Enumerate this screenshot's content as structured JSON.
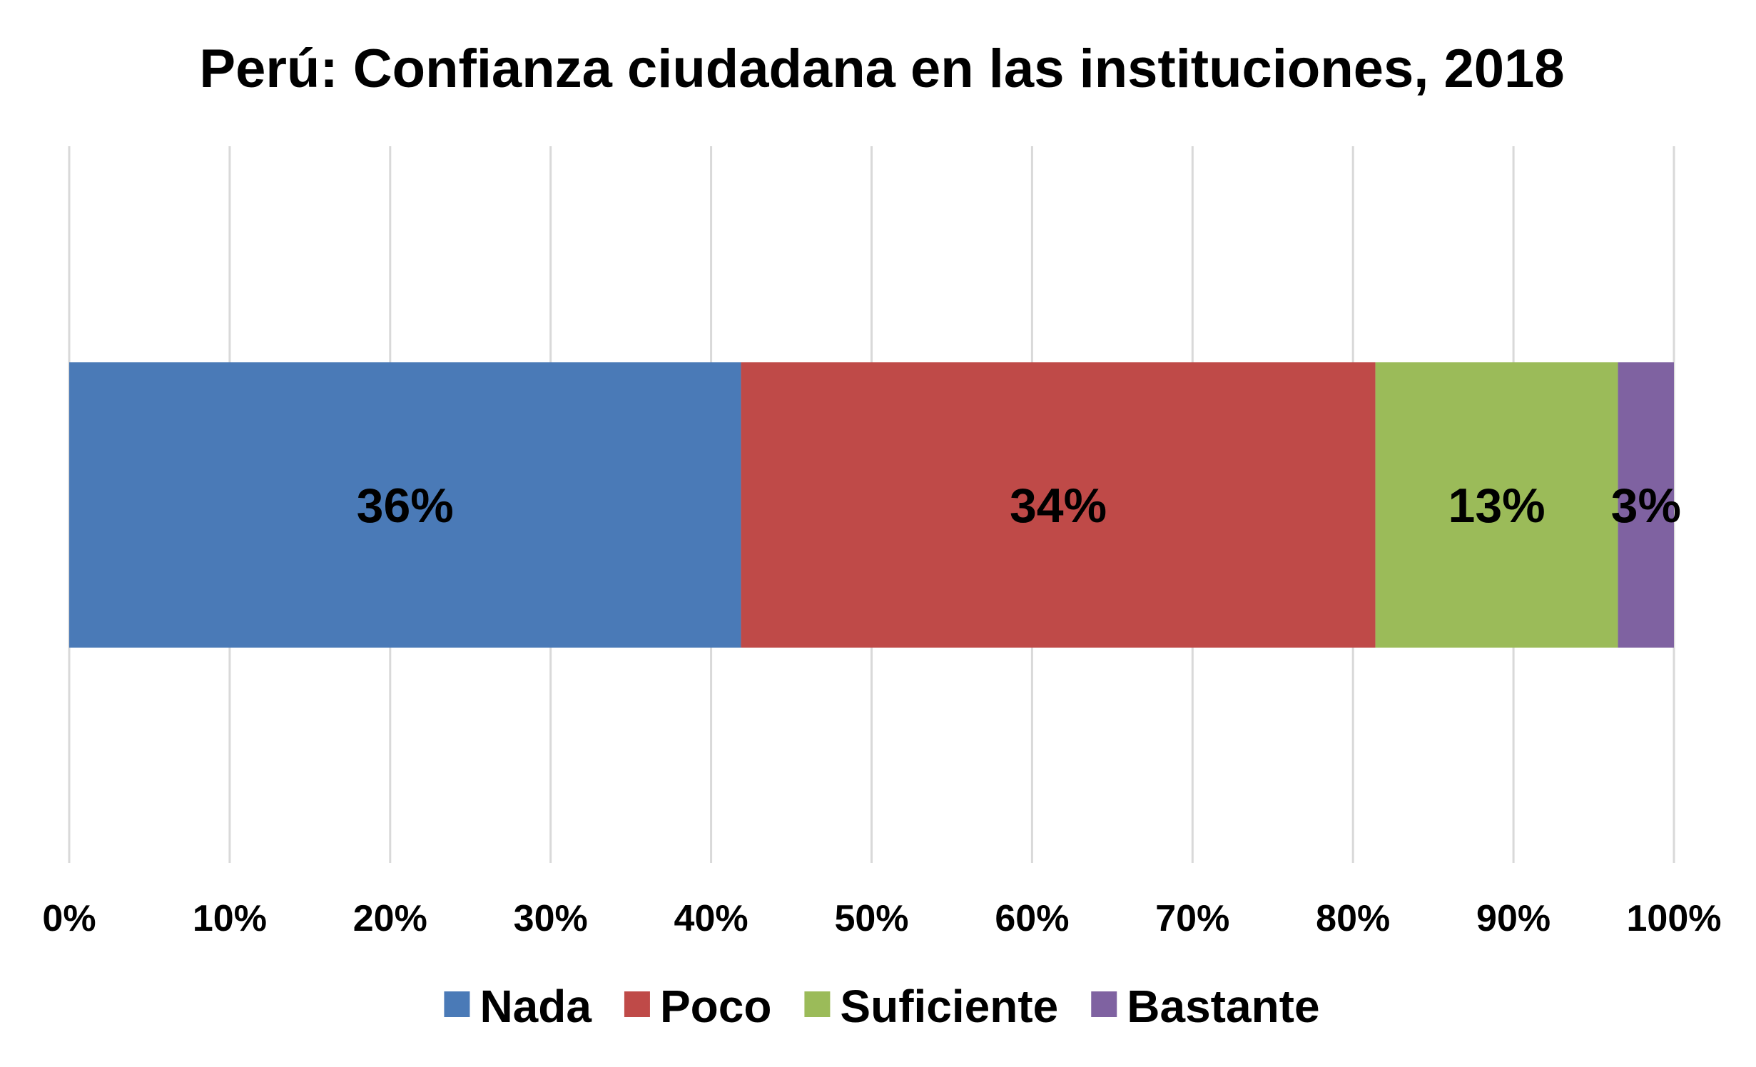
{
  "chart_data": {
    "type": "bar",
    "orientation": "horizontal",
    "stacked": "percent",
    "title": "Perú: Confianza ciudadana en las instituciones, 2018",
    "xlabel": "",
    "ylabel": "",
    "xlim": [
      0,
      100
    ],
    "x_ticks": [
      "0%",
      "10%",
      "20%",
      "30%",
      "40%",
      "50%",
      "60%",
      "70%",
      "80%",
      "90%",
      "100%"
    ],
    "grid": true,
    "legend_position": "bottom",
    "series": [
      {
        "name": "Nada",
        "value": 36,
        "label": "36%",
        "color": "#4a7ab7"
      },
      {
        "name": "Poco",
        "value": 34,
        "label": "34%",
        "color": "#bf4a48"
      },
      {
        "name": "Suficiente",
        "value": 13,
        "label": "13%",
        "color": "#9bbb59"
      },
      {
        "name": "Bastante",
        "value": 3,
        "label": "3%",
        "color": "#7f62a1"
      }
    ]
  }
}
